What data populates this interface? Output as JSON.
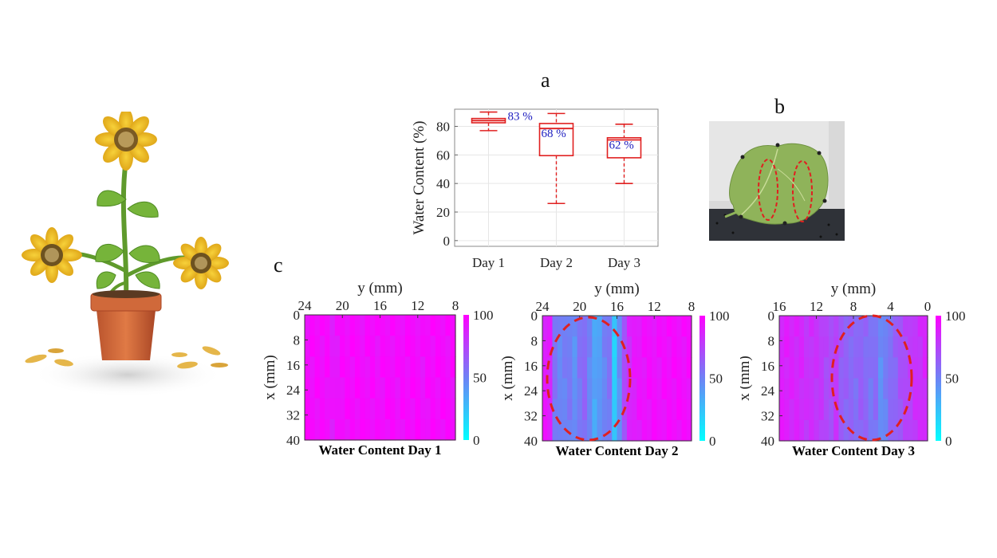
{
  "panels": {
    "a": "a",
    "b": "b",
    "c": "c"
  },
  "chart_data": [
    {
      "type": "box",
      "id": "boxplot",
      "title": "",
      "ylabel": "Water Content  (%)",
      "categories": [
        "Day 1",
        "Day 2",
        "Day 3"
      ],
      "ylim": [
        -4,
        92
      ],
      "yticks": [
        "0",
        "20",
        "40",
        "60",
        "80"
      ],
      "boxes": [
        {
          "min": 77,
          "q1": 82.5,
          "median": 84,
          "q3": 85.5,
          "max": 90,
          "label": "83 %"
        },
        {
          "min": 26,
          "q1": 59.5,
          "median": 78.5,
          "q3": 82,
          "max": 89,
          "label": "68 %"
        },
        {
          "min": 40,
          "q1": 58,
          "median": 70.5,
          "q3": 72,
          "max": 81.5,
          "label": "62 %"
        }
      ],
      "color": "#e02020",
      "label_color": "#2020c0"
    },
    {
      "type": "heatmap",
      "id": "hm1",
      "title": "Water Content Day 1",
      "xlabel": "y (mm)",
      "ylabel": "x (mm)",
      "xticks": [
        "24",
        "20",
        "16",
        "12",
        "8"
      ],
      "yticks": [
        "0",
        "8",
        "16",
        "24",
        "32",
        "40"
      ],
      "colorbar_ticks": [
        "100",
        "50",
        "0"
      ],
      "range": [
        0,
        100
      ],
      "columns": [
        96,
        96,
        96,
        95,
        95,
        90,
        93,
        96,
        96,
        96,
        96,
        95,
        96,
        96,
        94,
        95,
        96,
        96,
        95,
        96,
        96,
        96,
        96,
        94,
        96,
        96,
        96,
        96,
        96,
        96
      ]
    },
    {
      "type": "heatmap",
      "id": "hm2",
      "title": "Water Content Day 2",
      "xlabel": "y (mm)",
      "ylabel": "x (mm)",
      "xticks": [
        "24",
        "20",
        "16",
        "12",
        "8"
      ],
      "yticks": [
        "0",
        "8",
        "16",
        "24",
        "32",
        "40"
      ],
      "colorbar_ticks": [
        "100",
        "50",
        "0"
      ],
      "range": [
        0,
        100
      ],
      "columns": [
        90,
        88,
        55,
        48,
        50,
        52,
        45,
        55,
        60,
        48,
        35,
        40,
        50,
        55,
        20,
        45,
        70,
        85,
        90,
        92,
        93,
        94,
        94,
        94,
        95,
        95,
        95,
        95,
        95,
        95
      ]
    },
    {
      "type": "heatmap",
      "id": "hm3",
      "title": "Water Content Day 3",
      "xlabel": "y (mm)",
      "ylabel": "x (mm)",
      "xticks": [
        "16",
        "12",
        "8",
        "4",
        "0"
      ],
      "yticks": [
        "0",
        "8",
        "16",
        "24",
        "32",
        "40"
      ],
      "colorbar_ticks": [
        "100",
        "50",
        "0"
      ],
      "range": [
        0,
        100
      ],
      "columns": [
        88,
        88,
        86,
        85,
        84,
        80,
        82,
        80,
        78,
        72,
        70,
        78,
        65,
        62,
        60,
        58,
        62,
        60,
        55,
        58,
        45,
        50,
        58,
        62,
        68,
        72,
        75,
        80,
        82,
        85
      ]
    }
  ]
}
